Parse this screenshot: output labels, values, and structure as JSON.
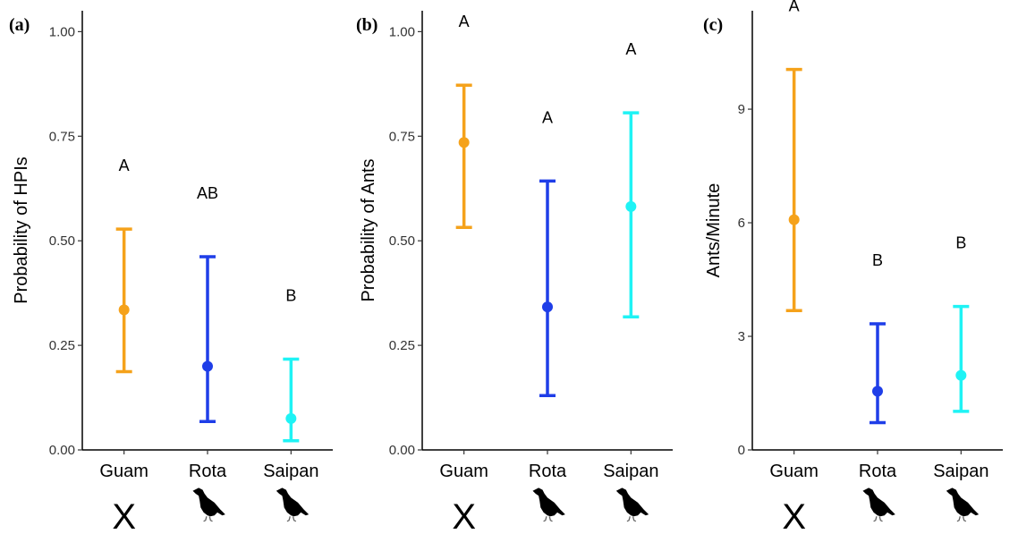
{
  "colors": {
    "Guam": "#f5a21b",
    "Rota": "#1f3ee8",
    "Saipan": "#1ff3f5"
  },
  "icons": [
    "x-mark-icon",
    "bird-silhouette-icon"
  ],
  "chart_data": [
    {
      "type": "scatter",
      "panel": "(a)",
      "title": "",
      "xlabel": "",
      "ylabel": "Probability of HPIs",
      "ylim": [
        0,
        1.05
      ],
      "yticks": [
        0,
        0.25,
        0.5,
        0.75,
        1.0
      ],
      "ytick_labels": [
        "0.00",
        "0.25",
        "0.50",
        "0.75",
        "1.00"
      ],
      "categories": [
        "Guam",
        "Rota",
        "Saipan"
      ],
      "values": [
        0.335,
        0.2,
        0.075
      ],
      "lower": [
        0.187,
        0.068,
        0.022
      ],
      "upper": [
        0.528,
        0.462,
        0.217
      ],
      "letters": [
        "A",
        "AB",
        "B"
      ],
      "markers": [
        "X",
        "bird",
        "bird"
      ],
      "grid": false,
      "legend": "none"
    },
    {
      "type": "scatter",
      "panel": "(b)",
      "title": "",
      "xlabel": "",
      "ylabel": "Probability of Ants",
      "ylim": [
        0,
        1.05
      ],
      "yticks": [
        0,
        0.25,
        0.5,
        0.75,
        1.0
      ],
      "ytick_labels": [
        "0.00",
        "0.25",
        "0.50",
        "0.75",
        "1.00"
      ],
      "categories": [
        "Guam",
        "Rota",
        "Saipan"
      ],
      "values": [
        0.735,
        0.342,
        0.582
      ],
      "lower": [
        0.532,
        0.13,
        0.318
      ],
      "upper": [
        0.872,
        0.643,
        0.806
      ],
      "letters": [
        "A",
        "A",
        "A"
      ],
      "markers": [
        "X",
        "bird",
        "bird"
      ],
      "grid": false,
      "legend": "none"
    },
    {
      "type": "scatter",
      "panel": "(c)",
      "title": "",
      "xlabel": "",
      "ylabel": "Ants/Minute",
      "ylim": [
        0,
        11.6
      ],
      "yticks": [
        0,
        3,
        6,
        9
      ],
      "ytick_labels": [
        "0",
        "3",
        "6",
        "9"
      ],
      "categories": [
        "Guam",
        "Rota",
        "Saipan"
      ],
      "values": [
        6.08,
        1.55,
        1.97
      ],
      "lower": [
        3.68,
        0.72,
        1.02
      ],
      "upper": [
        10.05,
        3.33,
        3.79
      ],
      "letters": [
        "A",
        "B",
        "B"
      ],
      "markers": [
        "X",
        "bird",
        "bird"
      ],
      "grid": false,
      "legend": "none"
    }
  ]
}
